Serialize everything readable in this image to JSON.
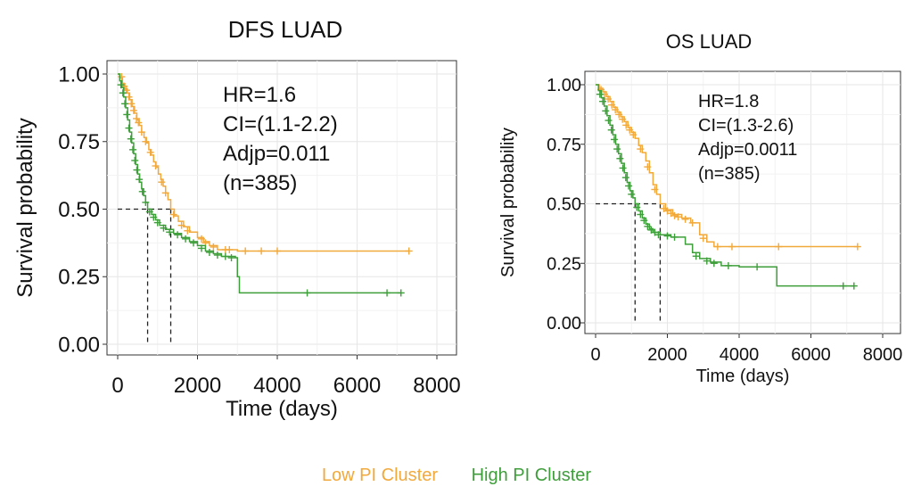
{
  "chart_data": [
    {
      "type": "line",
      "subtype": "kaplan-meier",
      "title": "DFS LUAD",
      "xlabel": "Time (days)",
      "ylabel": "Survival probability",
      "xlim": [
        0,
        8000
      ],
      "ylim": [
        0,
        1
      ],
      "xticks": [
        "0",
        "2000",
        "4000",
        "6000",
        "8000"
      ],
      "yticks": [
        "0.00",
        "0.25",
        "0.50",
        "0.75",
        "1.00"
      ],
      "grid": true,
      "stats": [
        "HR=1.6",
        "CI=(1.1-2.2)",
        "Adjp=0.011",
        "(n=385)"
      ],
      "median_lines": [
        {
          "series": "High PI Cluster",
          "x": 750,
          "y": 0.5
        },
        {
          "series": "Low PI Cluster",
          "x": 1330,
          "y": 0.5
        }
      ],
      "series": [
        {
          "name": "Low PI Cluster",
          "color": "#F2A93B",
          "steps": [
            [
              0,
              1.0
            ],
            [
              60,
              0.985
            ],
            [
              120,
              0.965
            ],
            [
              180,
              0.945
            ],
            [
              240,
              0.93
            ],
            [
              300,
              0.905
            ],
            [
              360,
              0.88
            ],
            [
              420,
              0.855
            ],
            [
              480,
              0.83
            ],
            [
              540,
              0.81
            ],
            [
              600,
              0.785
            ],
            [
              660,
              0.765
            ],
            [
              720,
              0.745
            ],
            [
              780,
              0.72
            ],
            [
              840,
              0.7
            ],
            [
              900,
              0.675
            ],
            [
              960,
              0.655
            ],
            [
              1020,
              0.63
            ],
            [
              1080,
              0.61
            ],
            [
              1140,
              0.585
            ],
            [
              1200,
              0.56
            ],
            [
              1260,
              0.535
            ],
            [
              1330,
              0.5
            ],
            [
              1420,
              0.475
            ],
            [
              1520,
              0.455
            ],
            [
              1650,
              0.435
            ],
            [
              1800,
              0.415
            ],
            [
              2000,
              0.395
            ],
            [
              2150,
              0.38
            ],
            [
              2300,
              0.365
            ],
            [
              2500,
              0.35
            ],
            [
              3000,
              0.345
            ],
            [
              7300,
              0.345
            ]
          ],
          "censors": [
            [
              100,
              0.99
            ],
            [
              160,
              0.955
            ],
            [
              220,
              0.94
            ],
            [
              280,
              0.915
            ],
            [
              340,
              0.89
            ],
            [
              400,
              0.865
            ],
            [
              470,
              0.835
            ],
            [
              520,
              0.82
            ],
            [
              600,
              0.785
            ],
            [
              700,
              0.75
            ],
            [
              820,
              0.71
            ],
            [
              950,
              0.66
            ],
            [
              1100,
              0.6
            ],
            [
              1200,
              0.56
            ],
            [
              1400,
              0.48
            ],
            [
              1600,
              0.44
            ],
            [
              1750,
              0.42
            ],
            [
              2100,
              0.39
            ],
            [
              2200,
              0.375
            ],
            [
              2400,
              0.36
            ],
            [
              2700,
              0.35
            ],
            [
              2800,
              0.35
            ],
            [
              3200,
              0.345
            ],
            [
              3600,
              0.345
            ],
            [
              4000,
              0.345
            ],
            [
              7300,
              0.345
            ]
          ]
        },
        {
          "name": "High PI Cluster",
          "color": "#3E9E3A",
          "steps": [
            [
              0,
              1.0
            ],
            [
              50,
              0.975
            ],
            [
              100,
              0.95
            ],
            [
              150,
              0.915
            ],
            [
              200,
              0.875
            ],
            [
              250,
              0.83
            ],
            [
              300,
              0.785
            ],
            [
              350,
              0.745
            ],
            [
              400,
              0.705
            ],
            [
              450,
              0.665
            ],
            [
              500,
              0.63
            ],
            [
              550,
              0.6
            ],
            [
              600,
              0.575
            ],
            [
              650,
              0.55
            ],
            [
              700,
              0.525
            ],
            [
              750,
              0.5
            ],
            [
              850,
              0.48
            ],
            [
              950,
              0.46
            ],
            [
              1050,
              0.44
            ],
            [
              1200,
              0.425
            ],
            [
              1400,
              0.41
            ],
            [
              1600,
              0.395
            ],
            [
              1800,
              0.38
            ],
            [
              2000,
              0.365
            ],
            [
              2200,
              0.345
            ],
            [
              2400,
              0.335
            ],
            [
              2600,
              0.325
            ],
            [
              2950,
              0.32
            ],
            [
              3000,
              0.25
            ],
            [
              3050,
              0.19
            ],
            [
              7100,
              0.19
            ]
          ],
          "censors": [
            [
              80,
              0.96
            ],
            [
              130,
              0.93
            ],
            [
              180,
              0.89
            ],
            [
              230,
              0.85
            ],
            [
              280,
              0.8
            ],
            [
              330,
              0.76
            ],
            [
              380,
              0.72
            ],
            [
              430,
              0.68
            ],
            [
              480,
              0.645
            ],
            [
              540,
              0.61
            ],
            [
              620,
              0.565
            ],
            [
              700,
              0.525
            ],
            [
              800,
              0.49
            ],
            [
              900,
              0.47
            ],
            [
              1000,
              0.45
            ],
            [
              1150,
              0.43
            ],
            [
              1300,
              0.415
            ],
            [
              1500,
              0.405
            ],
            [
              1700,
              0.39
            ],
            [
              1900,
              0.375
            ],
            [
              2100,
              0.355
            ],
            [
              2300,
              0.34
            ],
            [
              2500,
              0.33
            ],
            [
              2700,
              0.325
            ],
            [
              2850,
              0.32
            ],
            [
              4750,
              0.19
            ],
            [
              6750,
              0.19
            ],
            [
              7100,
              0.19
            ]
          ]
        }
      ]
    },
    {
      "type": "line",
      "subtype": "kaplan-meier",
      "title": "OS LUAD",
      "xlabel": "Time (days)",
      "ylabel": "Survival probability",
      "xlim": [
        0,
        8000
      ],
      "ylim": [
        0,
        1
      ],
      "xticks": [
        "0",
        "2000",
        "4000",
        "6000",
        "8000"
      ],
      "yticks": [
        "0.00",
        "0.25",
        "0.50",
        "0.75",
        "1.00"
      ],
      "grid": true,
      "stats": [
        "HR=1.8",
        "CI=(1.3-2.6)",
        "Adjp=0.0011",
        "(n=385)"
      ],
      "median_lines": [
        {
          "series": "High PI Cluster",
          "x": 1100,
          "y": 0.5
        },
        {
          "series": "Low PI Cluster",
          "x": 1800,
          "y": 0.5
        }
      ],
      "series": [
        {
          "name": "Low PI Cluster",
          "color": "#F2A93B",
          "steps": [
            [
              0,
              1.0
            ],
            [
              100,
              0.985
            ],
            [
              200,
              0.97
            ],
            [
              300,
              0.95
            ],
            [
              400,
              0.93
            ],
            [
              500,
              0.905
            ],
            [
              600,
              0.885
            ],
            [
              700,
              0.865
            ],
            [
              800,
              0.845
            ],
            [
              900,
              0.82
            ],
            [
              1000,
              0.8
            ],
            [
              1100,
              0.775
            ],
            [
              1200,
              0.745
            ],
            [
              1300,
              0.715
            ],
            [
              1400,
              0.68
            ],
            [
              1500,
              0.63
            ],
            [
              1600,
              0.58
            ],
            [
              1700,
              0.54
            ],
            [
              1800,
              0.5
            ],
            [
              1950,
              0.475
            ],
            [
              2150,
              0.455
            ],
            [
              2400,
              0.44
            ],
            [
              2650,
              0.42
            ],
            [
              2900,
              0.37
            ],
            [
              3100,
              0.34
            ],
            [
              3300,
              0.32
            ],
            [
              7300,
              0.32
            ]
          ],
          "censors": [
            [
              150,
              0.98
            ],
            [
              250,
              0.96
            ],
            [
              350,
              0.94
            ],
            [
              450,
              0.915
            ],
            [
              550,
              0.895
            ],
            [
              650,
              0.875
            ],
            [
              750,
              0.855
            ],
            [
              850,
              0.83
            ],
            [
              950,
              0.81
            ],
            [
              1050,
              0.79
            ],
            [
              1250,
              0.73
            ],
            [
              1450,
              0.655
            ],
            [
              1650,
              0.56
            ],
            [
              1900,
              0.48
            ],
            [
              2000,
              0.47
            ],
            [
              2100,
              0.46
            ],
            [
              2200,
              0.45
            ],
            [
              2300,
              0.445
            ],
            [
              2500,
              0.435
            ],
            [
              2700,
              0.42
            ],
            [
              3000,
              0.355
            ],
            [
              3400,
              0.32
            ],
            [
              3800,
              0.32
            ],
            [
              5100,
              0.32
            ],
            [
              7300,
              0.32
            ]
          ]
        },
        {
          "name": "High PI Cluster",
          "color": "#3E9E3A",
          "steps": [
            [
              0,
              1.0
            ],
            [
              80,
              0.975
            ],
            [
              160,
              0.945
            ],
            [
              240,
              0.91
            ],
            [
              320,
              0.87
            ],
            [
              400,
              0.83
            ],
            [
              480,
              0.79
            ],
            [
              560,
              0.75
            ],
            [
              640,
              0.71
            ],
            [
              720,
              0.67
            ],
            [
              800,
              0.63
            ],
            [
              880,
              0.59
            ],
            [
              960,
              0.555
            ],
            [
              1040,
              0.525
            ],
            [
              1100,
              0.5
            ],
            [
              1200,
              0.47
            ],
            [
              1300,
              0.44
            ],
            [
              1400,
              0.415
            ],
            [
              1500,
              0.395
            ],
            [
              1600,
              0.38
            ],
            [
              1800,
              0.37
            ],
            [
              2100,
              0.36
            ],
            [
              2500,
              0.33
            ],
            [
              2700,
              0.295
            ],
            [
              2900,
              0.27
            ],
            [
              3200,
              0.255
            ],
            [
              3500,
              0.24
            ],
            [
              4000,
              0.235
            ],
            [
              5000,
              0.235
            ],
            [
              5050,
              0.155
            ],
            [
              7200,
              0.155
            ]
          ],
          "censors": [
            [
              120,
              0.96
            ],
            [
              200,
              0.93
            ],
            [
              280,
              0.89
            ],
            [
              360,
              0.85
            ],
            [
              440,
              0.81
            ],
            [
              520,
              0.77
            ],
            [
              600,
              0.73
            ],
            [
              680,
              0.69
            ],
            [
              760,
              0.65
            ],
            [
              840,
              0.61
            ],
            [
              920,
              0.575
            ],
            [
              1000,
              0.54
            ],
            [
              1150,
              0.485
            ],
            [
              1250,
              0.455
            ],
            [
              1350,
              0.43
            ],
            [
              1450,
              0.405
            ],
            [
              1550,
              0.39
            ],
            [
              1650,
              0.38
            ],
            [
              1750,
              0.37
            ],
            [
              2000,
              0.365
            ],
            [
              2200,
              0.36
            ],
            [
              2800,
              0.28
            ],
            [
              3100,
              0.26
            ],
            [
              3300,
              0.25
            ],
            [
              3700,
              0.24
            ],
            [
              4500,
              0.235
            ],
            [
              6900,
              0.155
            ],
            [
              7200,
              0.155
            ]
          ]
        }
      ]
    }
  ],
  "legend": {
    "low": "Low PI Cluster",
    "high": "High PI Cluster",
    "low_color": "#F2A93B",
    "high_color": "#3E9E3A"
  }
}
